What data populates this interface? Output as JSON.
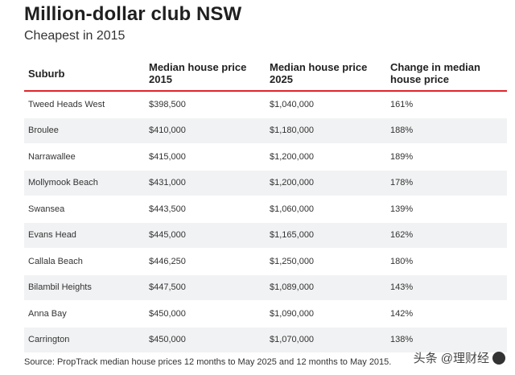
{
  "title": "Million-dollar club NSW",
  "subtitle": "Cheapest in 2015",
  "table": {
    "headers": [
      "Suburb",
      "Median house price 2015",
      "Median house price 2025",
      "Change in median house price"
    ],
    "rows": [
      [
        "Tweed Heads West",
        "$398,500",
        "$1,040,000",
        "161%"
      ],
      [
        "Broulee",
        "$410,000",
        "$1,180,000",
        "188%"
      ],
      [
        "Narrawallee",
        "$415,000",
        "$1,200,000",
        "189%"
      ],
      [
        "Mollymook Beach",
        "$431,000",
        "$1,200,000",
        "178%"
      ],
      [
        "Swansea",
        "$443,500",
        "$1,060,000",
        "139%"
      ],
      [
        "Evans Head",
        "$445,000",
        "$1,165,000",
        "162%"
      ],
      [
        "Callala Beach",
        "$446,250",
        "$1,250,000",
        "180%"
      ],
      [
        "Bilambil Heights",
        "$447,500",
        "$1,089,000",
        "143%"
      ],
      [
        "Anna Bay",
        "$450,000",
        "$1,090,000",
        "142%"
      ],
      [
        "Carrington",
        "$450,000",
        "$1,070,000",
        "138%"
      ]
    ]
  },
  "source": "Source: PropTrack median house prices 12 months to May 2025 and 12 months to May 2015.",
  "watermark": "头条 @理财经",
  "colors": {
    "header_rule": "#e0242c",
    "stripe": "#f1f2f3"
  }
}
